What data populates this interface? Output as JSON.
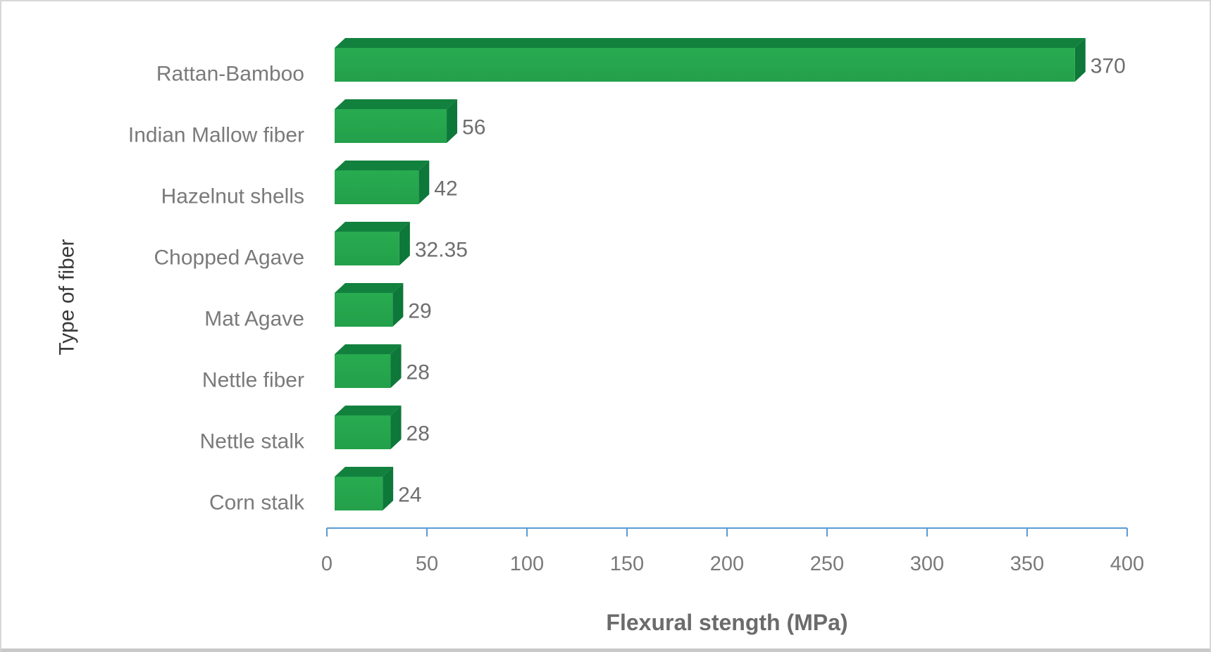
{
  "chart_data": {
    "type": "bar",
    "orientation": "horizontal",
    "style": "3d",
    "title": "",
    "xlabel": "Flexural stength (MPa)",
    "ylabel": "Type of fiber",
    "categories": [
      "Rattan-Bamboo",
      "Indian Mallow fiber",
      "Hazelnut shells",
      "Chopped Agave",
      "Mat Agave",
      "Nettle fiber",
      "Nettle stalk",
      "Corn stalk"
    ],
    "values": [
      370,
      56,
      42,
      32.35,
      29,
      28,
      28,
      24
    ],
    "data_labels": [
      "370",
      "56",
      "42",
      "32.35",
      "29",
      "28",
      "28",
      "24"
    ],
    "xlim": [
      0,
      400
    ],
    "xticks": [
      0,
      50,
      100,
      150,
      200,
      250,
      300,
      350,
      400
    ],
    "xtick_labels": [
      "0",
      "50",
      "100",
      "150",
      "200",
      "250",
      "300",
      "350",
      "400"
    ],
    "grid": false,
    "legend": false,
    "colors": {
      "bar_front": "#28ab50",
      "bar_front_bottom": "#23a04a",
      "bar_top": "#12813e",
      "bar_side": "#0e773a",
      "axis_line": "#5b9bd5",
      "tick_label": "#7a7a7a",
      "category_label": "#7a7a7a",
      "data_label": "#6e6e6e",
      "x_title": "#6b6b6b",
      "y_title": "#3a3a3a",
      "background": "#ffffff"
    }
  }
}
